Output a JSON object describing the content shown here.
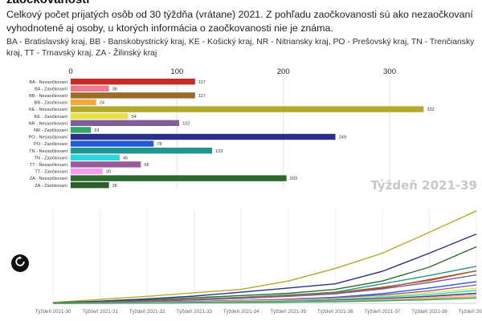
{
  "header": {
    "title": "zaočkovanosti",
    "subtitle": "Celkový počet prijatých osôb od 30 týždňa (vrátane) 2021. Z pohľadu zaočkovanosti sú ako nezaočkovaní vyhodnotené aj osoby, u ktorých informácia o zaočkovanosti nie je známa.",
    "legend_note": "BA - Bratislavský kraj, BB - Banskobystrický kraj, KE - Košický kraj, NR - Nitriansky kraj, PO - Prešovský kraj, TN - Trenčiansky kraj, TT - Trnavský kraj, ZA - Žilinský kraj"
  },
  "week_label": "Týždeň 2021-39",
  "controls": {
    "reset_icon": "restart-icon"
  },
  "chart_data": [
    {
      "type": "bar",
      "orientation": "horizontal",
      "xlim": [
        0,
        340
      ],
      "x_ticks": [
        0,
        100,
        200,
        300
      ],
      "categories": [
        "BA - Nezaočkovaní",
        "BA - Zaočkovaní",
        "BB - Nezaočkovaní",
        "BB - Zaočkovaní",
        "KE - Nezaočkovaní",
        "KE - Zaočkovaní",
        "NR - Nezaočkovaní",
        "NR - Zaočkovaní",
        "PO - Nezaočkovaní",
        "PO - Zaočkovaní",
        "TN - Nezaočkovaní",
        "TN - Zaočkovaní",
        "TT - Nezaočkovaní",
        "TT - Zaočkovaní",
        "ZA - Nezaočkovaní",
        "ZA - Zaočkovaní"
      ],
      "values": [
        117,
        36,
        117,
        24,
        332,
        54,
        102,
        19,
        249,
        78,
        133,
        46,
        66,
        30,
        203,
        36
      ],
      "colors": [
        "#c62a2a",
        "#ee7b8c",
        "#9a6b2b",
        "#f4a93a",
        "#b3aa2a",
        "#e8e04a",
        "#7e5f9c",
        "#2fa86b",
        "#2a2f8f",
        "#1f5cd6",
        "#21968e",
        "#2fd6dc",
        "#9a5a9a",
        "#f2a0ee",
        "#2d6a2d",
        "#2d5d2d"
      ]
    },
    {
      "type": "line",
      "x": [
        "Týždeň 2021-30",
        "Týždeň 2021-31",
        "Týždeň 2021-32",
        "Týždeň 2021-33",
        "Týždeň 2021-34",
        "Týždeň 2021-35",
        "Týždeň 2021-36",
        "Týždeň 2021-37",
        "Týždeň 2021-38",
        "Týždeň 2021-39"
      ],
      "ylim": [
        0,
        340
      ],
      "series": [
        {
          "name": "KE - Nezaočkovaní",
          "color": "#b3aa2a",
          "values": [
            3,
            14,
            25,
            38,
            50,
            80,
            125,
            180,
            255,
            332
          ]
        },
        {
          "name": "PO - Nezaočkovaní",
          "color": "#2a2f8f",
          "values": [
            2,
            8,
            16,
            26,
            40,
            55,
            70,
            115,
            180,
            249
          ]
        },
        {
          "name": "ZA - Nezaočkovaní",
          "color": "#2d6a2d",
          "values": [
            2,
            6,
            12,
            20,
            28,
            36,
            50,
            80,
            130,
            203
          ]
        },
        {
          "name": "TN - Nezaočkovaní",
          "color": "#21968e",
          "values": [
            1,
            4,
            9,
            15,
            22,
            30,
            40,
            70,
            100,
            133
          ]
        },
        {
          "name": "BA - Nezaočkovaní",
          "color": "#c62a2a",
          "values": [
            1,
            4,
            8,
            14,
            20,
            28,
            38,
            55,
            85,
            117
          ]
        },
        {
          "name": "BB - Nezaočkovaní",
          "color": "#9a6b2b",
          "values": [
            1,
            4,
            8,
            14,
            20,
            28,
            38,
            58,
            82,
            117
          ]
        },
        {
          "name": "NR - Nezaočkovaní",
          "color": "#7e5f9c",
          "values": [
            1,
            3,
            7,
            12,
            18,
            25,
            34,
            52,
            75,
            102
          ]
        },
        {
          "name": "PO - Zaočkovaní",
          "color": "#1f5cd6",
          "values": [
            0,
            2,
            4,
            7,
            10,
            15,
            22,
            35,
            55,
            78
          ]
        },
        {
          "name": "TT - Nezaočkovaní",
          "color": "#9a5a9a",
          "values": [
            0,
            2,
            4,
            7,
            10,
            14,
            20,
            30,
            45,
            66
          ]
        },
        {
          "name": "KE - Zaočkovaní",
          "color": "#e8e04a",
          "values": [
            0,
            1,
            3,
            5,
            8,
            11,
            16,
            25,
            38,
            54
          ]
        },
        {
          "name": "TN - Zaočkovaní",
          "color": "#2fd6dc",
          "values": [
            0,
            1,
            2,
            4,
            6,
            9,
            14,
            22,
            32,
            46
          ]
        },
        {
          "name": "BA - Zaočkovaní",
          "color": "#ee7b8c",
          "values": [
            0,
            1,
            2,
            3,
            5,
            7,
            11,
            17,
            26,
            36
          ]
        },
        {
          "name": "ZA - Zaočkovaní",
          "color": "#2d5d2d",
          "values": [
            0,
            1,
            2,
            3,
            5,
            7,
            11,
            17,
            25,
            36
          ]
        },
        {
          "name": "TT - Zaočkovaní",
          "color": "#f2a0ee",
          "values": [
            0,
            1,
            2,
            3,
            4,
            6,
            9,
            14,
            21,
            30
          ]
        },
        {
          "name": "BB - Zaočkovaní",
          "color": "#f4a93a",
          "values": [
            0,
            1,
            1,
            2,
            3,
            5,
            7,
            11,
            17,
            24
          ]
        },
        {
          "name": "NR - Zaočkovaní",
          "color": "#2fa86b",
          "values": [
            0,
            0,
            1,
            2,
            3,
            4,
            6,
            9,
            13,
            19
          ]
        }
      ]
    }
  ]
}
